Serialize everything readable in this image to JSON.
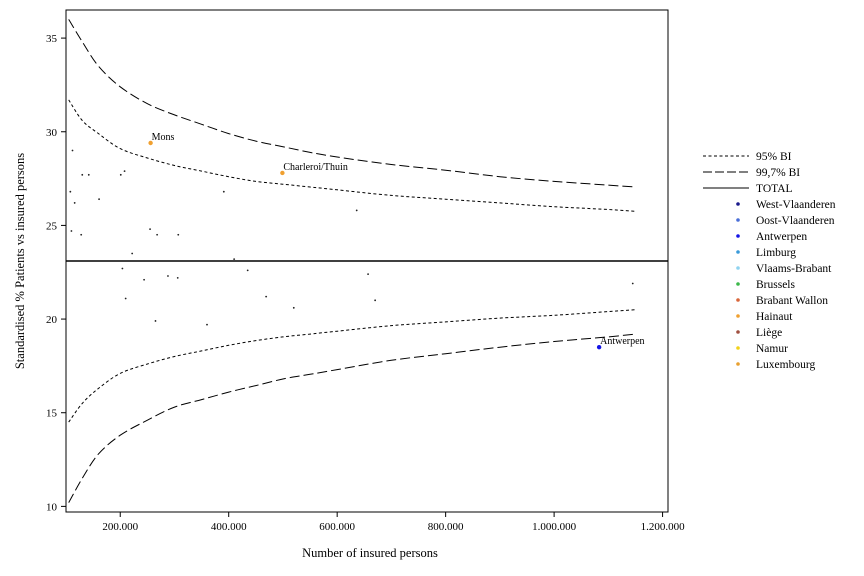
{
  "chart_data": {
    "type": "scatter",
    "title": "",
    "xlabel": "Number of insured persons",
    "ylabel": "Standardised % Patients vs insured persons",
    "xlim": [
      100000,
      1210000
    ],
    "ylim": [
      9.7,
      36.5
    ],
    "x_ticks": [
      {
        "value": 200000,
        "label": "200.000"
      },
      {
        "value": 400000,
        "label": "400.000"
      },
      {
        "value": 600000,
        "label": "600.000"
      },
      {
        "value": 800000,
        "label": "800.000"
      },
      {
        "value": 1000000,
        "label": "1.000.000"
      },
      {
        "value": 1200000,
        "label": "1.200.000"
      }
    ],
    "y_ticks": [
      {
        "value": 10,
        "label": "10"
      },
      {
        "value": 15,
        "label": "15"
      },
      {
        "value": 20,
        "label": "20"
      },
      {
        "value": 25,
        "label": "25"
      },
      {
        "value": 30,
        "label": "30"
      },
      {
        "value": 35,
        "label": "35"
      }
    ],
    "grid": false,
    "legend_position": "right",
    "total": 23.1,
    "limits": {
      "x": [
        105000,
        130000,
        160000,
        200000,
        250000,
        300000,
        350000,
        400000,
        450000,
        500000,
        550000,
        600000,
        700000,
        800000,
        900000,
        1000000,
        1100000,
        1150000
      ],
      "bi95_upper": [
        31.7,
        30.6,
        29.9,
        29.1,
        28.6,
        28.2,
        27.9,
        27.6,
        27.35,
        27.2,
        27.05,
        26.9,
        26.6,
        26.4,
        26.2,
        26.0,
        25.85,
        25.75
      ],
      "bi95_lower": [
        14.5,
        15.5,
        16.3,
        17.1,
        17.6,
        18.0,
        18.3,
        18.6,
        18.85,
        19.05,
        19.2,
        19.35,
        19.65,
        19.85,
        20.05,
        20.2,
        20.4,
        20.5
      ],
      "bi997_upper": [
        36.0,
        34.8,
        33.5,
        32.4,
        31.5,
        30.9,
        30.4,
        29.9,
        29.5,
        29.2,
        28.9,
        28.65,
        28.25,
        27.95,
        27.6,
        27.35,
        27.15,
        27.05
      ],
      "bi997_lower": [
        10.2,
        11.5,
        12.8,
        13.8,
        14.6,
        15.3,
        15.7,
        16.1,
        16.45,
        16.8,
        17.05,
        17.3,
        17.8,
        18.15,
        18.5,
        18.8,
        19.05,
        19.2
      ]
    },
    "series": [
      {
        "name": "West-Vlaanderen",
        "color": "#1a1a8c",
        "points": []
      },
      {
        "name": "Oost-Vlaanderen",
        "color": "#4a6fd8",
        "points": []
      },
      {
        "name": "Antwerpen",
        "color": "#1414e6",
        "points": [
          [
            1083000,
            18.5
          ]
        ]
      },
      {
        "name": "Limburg",
        "color": "#3a9ad9",
        "points": []
      },
      {
        "name": "Vlaams-Brabant",
        "color": "#8fd3f0",
        "points": []
      },
      {
        "name": "Brussels",
        "color": "#3cb84a",
        "points": []
      },
      {
        "name": "Brabant Wallon",
        "color": "#d9663a",
        "points": []
      },
      {
        "name": "Hainaut",
        "color": "#f0a030",
        "points": [
          [
            256000,
            29.4
          ],
          [
            499000,
            27.8
          ]
        ]
      },
      {
        "name": "Liège",
        "color": "#a05040",
        "points": []
      },
      {
        "name": "Namur",
        "color": "#f2d21a",
        "points": []
      },
      {
        "name": "Luxembourg",
        "color": "#e8a030",
        "points": []
      }
    ],
    "small_points": [
      [
        108000,
        26.8
      ],
      [
        112000,
        29.0
      ],
      [
        116000,
        26.2
      ],
      [
        110000,
        24.7
      ],
      [
        128000,
        24.5
      ],
      [
        130000,
        27.7
      ],
      [
        142000,
        27.7
      ],
      [
        161000,
        26.4
      ],
      [
        201000,
        27.7
      ],
      [
        208000,
        27.9
      ],
      [
        204000,
        22.7
      ],
      [
        210000,
        21.1
      ],
      [
        222000,
        23.5
      ],
      [
        244000,
        22.1
      ],
      [
        255000,
        24.8
      ],
      [
        265000,
        19.9
      ],
      [
        268000,
        24.5
      ],
      [
        288000,
        22.3
      ],
      [
        306000,
        22.2
      ],
      [
        307000,
        24.5
      ],
      [
        360000,
        19.7
      ],
      [
        391000,
        26.8
      ],
      [
        410000,
        23.2
      ],
      [
        435000,
        22.6
      ],
      [
        469000,
        21.2
      ],
      [
        520000,
        20.6
      ],
      [
        636000,
        25.8
      ],
      [
        657000,
        22.4
      ],
      [
        670000,
        21.0
      ],
      [
        1145000,
        21.9
      ]
    ],
    "annotations": [
      {
        "text": "Mons",
        "x": 256000,
        "y": 29.4
      },
      {
        "text": "Charleroi/Thuin",
        "x": 499000,
        "y": 27.8
      },
      {
        "text": "Antwerpen",
        "x": 1083000,
        "y": 18.5
      }
    ],
    "legend": [
      {
        "label": "95% BI",
        "kind": "line",
        "style": "short-dash"
      },
      {
        "label": "99,7% BI",
        "kind": "line",
        "style": "long-dash"
      },
      {
        "label": "TOTAL",
        "kind": "line",
        "style": "solid"
      },
      {
        "label": "West-Vlaanderen",
        "kind": "dot",
        "color": "#1a1a8c"
      },
      {
        "label": "Oost-Vlaanderen",
        "kind": "dot",
        "color": "#4a6fd8"
      },
      {
        "label": "Antwerpen",
        "kind": "dot",
        "color": "#1414e6"
      },
      {
        "label": "Limburg",
        "kind": "dot",
        "color": "#3a9ad9"
      },
      {
        "label": "Vlaams-Brabant",
        "kind": "dot",
        "color": "#8fd3f0"
      },
      {
        "label": "Brussels",
        "kind": "dot",
        "color": "#3cb84a"
      },
      {
        "label": "Brabant Wallon",
        "kind": "dot",
        "color": "#d9663a"
      },
      {
        "label": "Hainaut",
        "kind": "dot",
        "color": "#f0a030"
      },
      {
        "label": "Liège",
        "kind": "dot",
        "color": "#a05040"
      },
      {
        "label": "Namur",
        "kind": "dot",
        "color": "#f2d21a"
      },
      {
        "label": "Luxembourg",
        "kind": "dot",
        "color": "#e8a030"
      }
    ]
  }
}
